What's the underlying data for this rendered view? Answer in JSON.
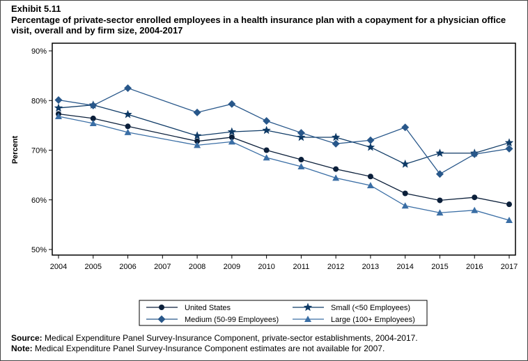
{
  "exhibit": "Exhibit 5.11",
  "title": "Percentage of private-sector enrolled employees in a health insurance plan with a copayment for a physician office visit, overall and by firm size, 2004-2017",
  "source_label": "Source:",
  "source_text": " Medical Expenditure Panel Survey-Insurance Component, private-sector establishments, 2004-2017.",
  "note_label": "Note:",
  "note_text": " Medical Expenditure Panel Survey-Insurance Component estimates are not available for 2007.",
  "chart_data": {
    "type": "line",
    "ylabel": "Percent",
    "xlabel": "",
    "ylim": [
      50,
      90
    ],
    "yticks": [
      "50%",
      "60%",
      "70%",
      "80%",
      "90%"
    ],
    "yticks_values": [
      50,
      60,
      70,
      80,
      90
    ],
    "x_ticks": [
      2004,
      2005,
      2006,
      2007,
      2008,
      2009,
      2010,
      2011,
      2012,
      2013,
      2014,
      2015,
      2016,
      2017
    ],
    "x": [
      2004,
      2005,
      2006,
      2008,
      2009,
      2010,
      2011,
      2012,
      2013,
      2014,
      2015,
      2016,
      2017
    ],
    "grid": false,
    "legend_placement": "bottom",
    "series": [
      {
        "name": "United States",
        "marker": "circle",
        "color": "#0b1f3a",
        "values": [
          77.3,
          76.4,
          74.8,
          71.8,
          72.6,
          70.0,
          68.1,
          66.2,
          64.7,
          61.3,
          59.9,
          60.5,
          59.1
        ]
      },
      {
        "name": "Small (<50 Employees)",
        "marker": "star",
        "color": "#0e3a66",
        "values": [
          78.5,
          79.1,
          77.2,
          72.9,
          73.7,
          74.0,
          72.6,
          72.6,
          70.6,
          67.2,
          69.4,
          69.4,
          71.5
        ]
      },
      {
        "name": "Medium (50-99 Employees)",
        "marker": "diamond",
        "color": "#28578a",
        "values": [
          80.1,
          79.0,
          82.5,
          77.6,
          79.3,
          75.9,
          73.5,
          71.3,
          72.0,
          74.6,
          65.2,
          69.2,
          70.3
        ]
      },
      {
        "name": "Large (100+ Employees)",
        "marker": "triangle",
        "color": "#3a6ea5",
        "values": [
          76.8,
          75.4,
          73.6,
          71.0,
          71.7,
          68.5,
          66.7,
          64.4,
          62.9,
          58.8,
          57.4,
          57.9,
          55.9
        ]
      }
    ]
  }
}
